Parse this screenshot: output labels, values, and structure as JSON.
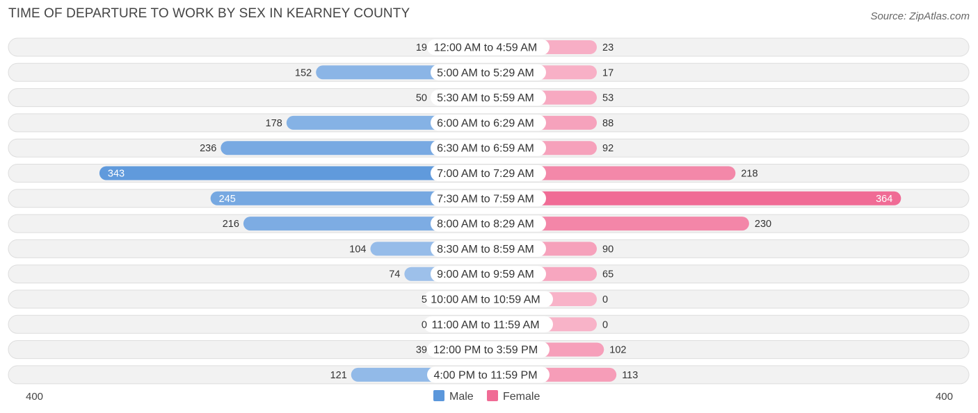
{
  "title": "TIME OF DEPARTURE TO WORK BY SEX IN KEARNEY COUNTY",
  "source": "Source: ZipAtlas.com",
  "colors": {
    "male_dark": "#5b97db",
    "male_light": "#aecbee",
    "female_dark": "#f06b95",
    "female_light": "#f8b3c8",
    "row_bg": "#f2f2f2",
    "row_border": "#dddddd"
  },
  "chart_data": {
    "type": "bar",
    "orientation": "horizontal-diverging",
    "categories": [
      "12:00 AM to 4:59 AM",
      "5:00 AM to 5:29 AM",
      "5:30 AM to 5:59 AM",
      "6:00 AM to 6:29 AM",
      "6:30 AM to 6:59 AM",
      "7:00 AM to 7:29 AM",
      "7:30 AM to 7:59 AM",
      "8:00 AM to 8:29 AM",
      "8:30 AM to 8:59 AM",
      "9:00 AM to 9:59 AM",
      "10:00 AM to 10:59 AM",
      "11:00 AM to 11:59 AM",
      "12:00 PM to 3:59 PM",
      "4:00 PM to 11:59 PM"
    ],
    "series": [
      {
        "name": "Male",
        "values": [
          19,
          152,
          50,
          178,
          236,
          343,
          245,
          216,
          104,
          74,
          5,
          0,
          39,
          121
        ]
      },
      {
        "name": "Female",
        "values": [
          23,
          17,
          53,
          88,
          92,
          218,
          364,
          230,
          90,
          65,
          0,
          0,
          102,
          113
        ]
      }
    ],
    "xlim": [
      -400,
      400
    ],
    "axis_labels": {
      "left": "400",
      "right": "400"
    },
    "legend": {
      "position": "bottom-center",
      "items": [
        "Male",
        "Female"
      ]
    }
  }
}
